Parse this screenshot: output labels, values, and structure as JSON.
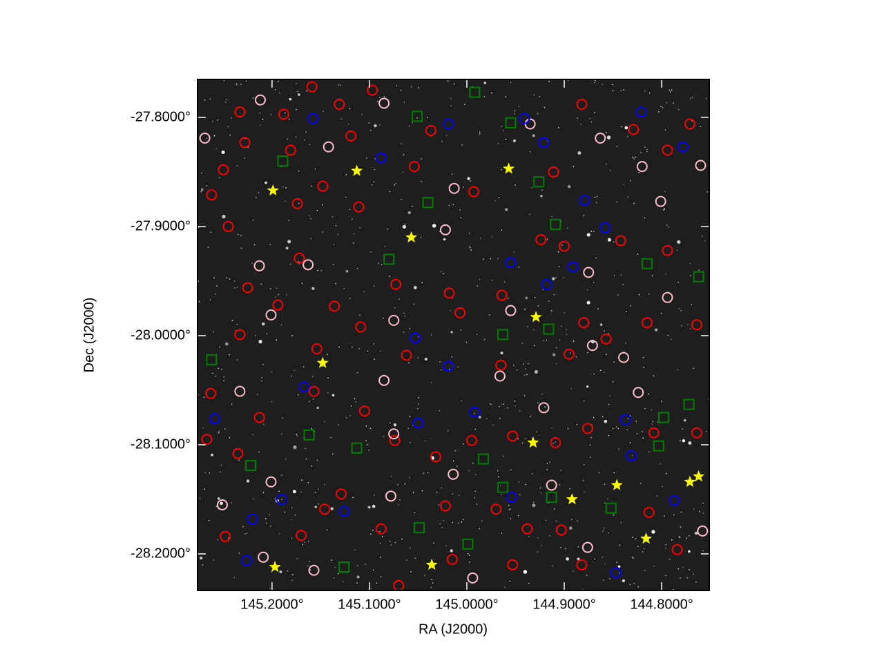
{
  "chart_data": {
    "type": "scatter",
    "x_label": "RA (J2000)",
    "y_label": "Dec (J2000)",
    "xlim": [
      145.2765,
      144.7511
    ],
    "ylim": [
      -28.2335,
      -27.7652
    ],
    "xticks": [
      {
        "value": 145.2,
        "label": "145.2000°"
      },
      {
        "value": 145.1,
        "label": "145.1000°"
      },
      {
        "value": 145.0,
        "label": "145.0000°"
      },
      {
        "value": 144.9,
        "label": "144.9000°"
      },
      {
        "value": 144.8,
        "label": "144.8000°"
      }
    ],
    "yticks": [
      {
        "value": -27.8,
        "label": "-27.8000°"
      },
      {
        "value": -27.9,
        "label": "-27.9000°"
      },
      {
        "value": -28.0,
        "label": "-28.0000°"
      },
      {
        "value": -28.1,
        "label": "-28.1000°"
      },
      {
        "value": -28.2,
        "label": "-28.2000°"
      }
    ],
    "background": "#1e1e1e",
    "series": [
      {
        "marker": "circle",
        "color": "#ff0000",
        "x": [
          145.233,
          145.188,
          145.159,
          145.131,
          145.097,
          145.037,
          145.228,
          145.181,
          145.119,
          145.054,
          144.993,
          144.911,
          144.882,
          144.829,
          144.794,
          144.771,
          145.25,
          145.262,
          145.245,
          145.174,
          145.148,
          145.111,
          145.172,
          145.225,
          145.194,
          145.136,
          145.073,
          145.018,
          145.007,
          144.964,
          144.924,
          144.9,
          144.842,
          144.794,
          144.764,
          144.815,
          144.88,
          144.857,
          144.895,
          144.965,
          145.062,
          145.109,
          145.154,
          145.233,
          145.263,
          145.213,
          145.157,
          145.105,
          145.074,
          145.032,
          144.995,
          144.953,
          144.909,
          144.876,
          144.808,
          144.764,
          145.267,
          145.235,
          145.129,
          145.146,
          145.088,
          145.022,
          144.97,
          144.938,
          144.903,
          144.813,
          144.784,
          145.248,
          145.17,
          145.015,
          144.953,
          144.882,
          145.07
        ],
        "y": [
          -27.795,
          -27.797,
          -27.772,
          -27.788,
          -27.775,
          -27.812,
          -27.823,
          -27.83,
          -27.817,
          -27.845,
          -27.868,
          -27.85,
          -27.788,
          -27.811,
          -27.83,
          -27.806,
          -27.848,
          -27.871,
          -27.9,
          -27.879,
          -27.863,
          -27.882,
          -27.929,
          -27.956,
          -27.972,
          -27.973,
          -27.953,
          -27.961,
          -27.979,
          -27.963,
          -27.912,
          -27.918,
          -27.913,
          -27.922,
          -27.99,
          -27.988,
          -27.988,
          -28.003,
          -28.017,
          -28.027,
          -28.018,
          -27.992,
          -28.012,
          -27.999,
          -28.053,
          -28.075,
          -28.051,
          -28.069,
          -28.096,
          -28.111,
          -28.096,
          -28.092,
          -28.098,
          -28.085,
          -28.089,
          -28.089,
          -28.095,
          -28.108,
          -28.145,
          -28.159,
          -28.177,
          -28.156,
          -28.159,
          -28.177,
          -28.178,
          -28.162,
          -28.196,
          -28.184,
          -28.183,
          -28.205,
          -28.21,
          -28.21,
          -28.229
        ]
      },
      {
        "marker": "circle",
        "color": "#ffc0cb",
        "x": [
          145.269,
          145.212,
          145.142,
          145.085,
          145.022,
          145.013,
          144.955,
          144.935,
          144.863,
          144.875,
          144.82,
          144.801,
          144.794,
          144.76,
          145.213,
          145.201,
          145.163,
          145.075,
          145.085,
          144.966,
          144.921,
          144.871,
          144.839,
          144.824,
          145.233,
          145.251,
          145.201,
          145.075,
          145.014,
          144.913,
          144.876,
          144.758,
          145.209,
          145.157,
          145.078,
          144.994
        ],
        "y": [
          -27.819,
          -27.784,
          -27.827,
          -27.787,
          -27.903,
          -27.865,
          -27.977,
          -27.806,
          -27.819,
          -27.942,
          -27.845,
          -27.877,
          -27.965,
          -27.844,
          -27.936,
          -27.981,
          -27.935,
          -27.986,
          -28.041,
          -28.037,
          -28.066,
          -28.009,
          -28.02,
          -28.052,
          -28.051,
          -28.155,
          -28.134,
          -28.09,
          -28.127,
          -28.137,
          -28.194,
          -28.179,
          -28.203,
          -28.215,
          -28.147,
          -28.222
        ]
      },
      {
        "marker": "circle",
        "color": "#0000ff",
        "x": [
          145.158,
          145.088,
          145.019,
          144.941,
          144.821,
          144.778,
          144.921,
          144.879,
          144.858,
          144.955,
          144.891,
          144.918,
          145.053,
          145.019,
          145.167,
          145.259,
          145.05,
          144.992,
          144.837,
          144.831,
          145.19,
          145.22,
          145.126,
          145.226,
          144.847,
          144.954,
          144.787
        ],
        "y": [
          -27.801,
          -27.837,
          -27.806,
          -27.801,
          -27.795,
          -27.827,
          -27.823,
          -27.876,
          -27.901,
          -27.933,
          -27.937,
          -27.953,
          -28.002,
          -28.028,
          -28.047,
          -28.076,
          -28.08,
          -28.07,
          -28.077,
          -28.11,
          -28.15,
          -28.168,
          -28.161,
          -28.206,
          -28.217,
          -28.148,
          -28.151
        ]
      },
      {
        "marker": "square",
        "color": "#008000",
        "x": [
          145.189,
          145.051,
          144.955,
          145.04,
          144.926,
          144.909,
          145.08,
          144.815,
          144.762,
          144.963,
          144.916,
          145.262,
          144.772,
          144.798,
          145.162,
          145.113,
          144.983,
          144.963,
          144.913,
          144.852,
          145.049,
          144.999,
          145.126,
          144.992,
          145.222,
          144.803
        ],
        "y": [
          -27.84,
          -27.799,
          -27.805,
          -27.878,
          -27.859,
          -27.898,
          -27.93,
          -27.934,
          -27.946,
          -27.999,
          -27.994,
          -28.022,
          -28.063,
          -28.075,
          -28.091,
          -28.103,
          -28.113,
          -28.139,
          -28.148,
          -28.158,
          -28.176,
          -28.191,
          -28.212,
          -27.777,
          -28.119,
          -28.101
        ]
      },
      {
        "marker": "star",
        "color": "#ffff00",
        "x": [
          145.199,
          145.113,
          144.957,
          145.057,
          145.148,
          144.929,
          144.932,
          145.197,
          145.036,
          144.892,
          144.846,
          144.816,
          144.771,
          144.762
        ],
        "y": [
          -27.867,
          -27.849,
          -27.847,
          -27.91,
          -28.025,
          -27.983,
          -28.098,
          -28.212,
          -28.21,
          -28.15,
          -28.137,
          -28.186,
          -28.134,
          -28.129
        ]
      }
    ]
  }
}
